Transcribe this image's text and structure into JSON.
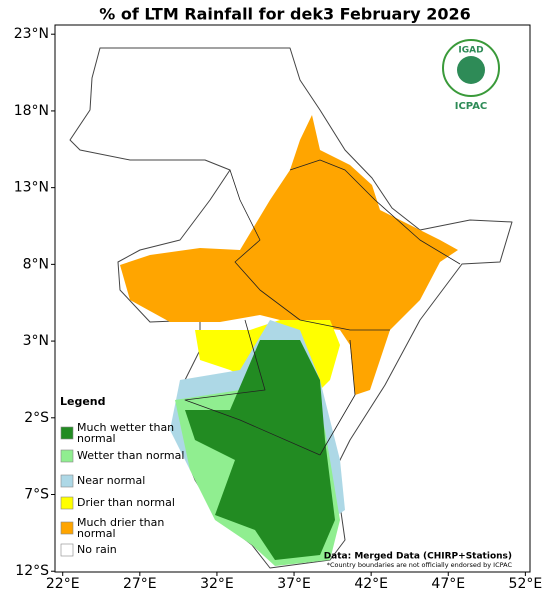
{
  "map": {
    "title": "% of LTM Rainfall for dek3 February 2026",
    "xlim": [
      21.5,
      52.3
    ],
    "ylim": [
      -12.05,
      23.6
    ],
    "xticks": [
      {
        "value": 22,
        "label": "22°E"
      },
      {
        "value": 27,
        "label": "27°E"
      },
      {
        "value": 32,
        "label": "32°E"
      },
      {
        "value": 37,
        "label": "37°E"
      },
      {
        "value": 42,
        "label": "42°E"
      },
      {
        "value": 47,
        "label": "47°E"
      },
      {
        "value": 52,
        "label": "52°E"
      }
    ],
    "yticks": [
      {
        "value": 23,
        "label": "23°N"
      },
      {
        "value": 18,
        "label": "18°N"
      },
      {
        "value": 13,
        "label": "13°N"
      },
      {
        "value": 8,
        "label": "8°N"
      },
      {
        "value": 3,
        "label": "3°N"
      },
      {
        "value": -2,
        "label": "2°S"
      },
      {
        "value": -7,
        "label": "7°S"
      },
      {
        "value": -12,
        "label": "12°S"
      }
    ],
    "legend": {
      "title": "Legend",
      "items": [
        {
          "label": "Much wetter than normal",
          "color": "#228b22"
        },
        {
          "label": "Wetter than normal",
          "color": "#90ee90"
        },
        {
          "label": "Near normal",
          "color": "#add8e6"
        },
        {
          "label": "Drier than normal",
          "color": "#ffff00"
        },
        {
          "label": "Much drier than normal",
          "color": "#ffa500"
        },
        {
          "label": "No rain",
          "color": "#ffffff"
        }
      ]
    },
    "source": "Data: Merged Data (CHIRP+Stations)",
    "disclaimer": "*Country boundaries are not officially endorsed by ICPAC",
    "logo": {
      "top": "IGAD",
      "bottom": "ICPAC"
    }
  }
}
